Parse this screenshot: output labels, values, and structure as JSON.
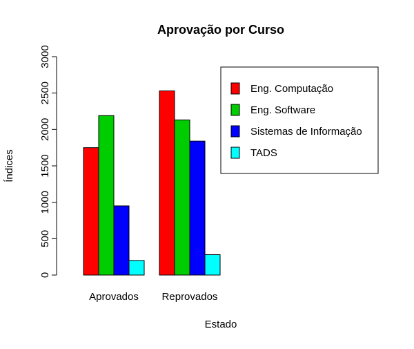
{
  "chart_data": {
    "type": "bar",
    "title": "Aprovação por Curso",
    "xlabel": "Estado",
    "ylabel": "Índices",
    "categories": [
      "Aprovados",
      "Reprovados"
    ],
    "series": [
      {
        "name": "Eng. Computação",
        "color": "#ff0000",
        "values": [
          1750,
          2530
        ]
      },
      {
        "name": "Eng. Software",
        "color": "#00cd00",
        "values": [
          2190,
          2130
        ]
      },
      {
        "name": "Sistemas de Informação",
        "color": "#0000ff",
        "values": [
          950,
          1840
        ]
      },
      {
        "name": "TADS",
        "color": "#00ffff",
        "values": [
          200,
          280
        ]
      }
    ],
    "ylim": [
      0,
      3000
    ],
    "yticks": [
      0,
      500,
      1000,
      1500,
      2000,
      2500,
      3000
    ],
    "grid": false,
    "legend_position": "top-right"
  }
}
